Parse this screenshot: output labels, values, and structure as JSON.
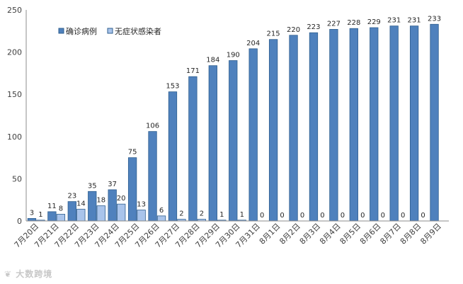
{
  "chart_data": {
    "type": "bar",
    "title": "",
    "xlabel": "",
    "ylabel": "",
    "ylim": [
      0,
      250
    ],
    "yticks": [
      "0",
      "50",
      "100",
      "150",
      "200",
      "250"
    ],
    "grid": false,
    "legend_position": "top-left",
    "categories": [
      "7月20日",
      "7月21日",
      "7月22日",
      "7月23日",
      "7月24日",
      "7月25日",
      "7月26日",
      "7月27日",
      "7月28日",
      "7月29日",
      "7月30日",
      "7月31日",
      "8月1日",
      "8月2日",
      "8月3日",
      "8月4日",
      "8月5日",
      "8月6日",
      "8月7日",
      "8月8日",
      "8月9日"
    ],
    "series": [
      {
        "name": "确诊病例",
        "color": "#4f81bd",
        "values": [
          3,
          11,
          23,
          35,
          37,
          75,
          106,
          153,
          171,
          184,
          190,
          204,
          215,
          220,
          223,
          227,
          228,
          229,
          231,
          231,
          233
        ]
      },
      {
        "name": "无症状感染者",
        "color": "#a9c4eb",
        "values": [
          1,
          8,
          14,
          18,
          20,
          13,
          6,
          2,
          2,
          1,
          1,
          0,
          0,
          0,
          0,
          0,
          0,
          0,
          0,
          0,
          null
        ]
      }
    ]
  },
  "watermark": {
    "text": "大数跨境",
    "icon": "bird-logo-icon"
  }
}
